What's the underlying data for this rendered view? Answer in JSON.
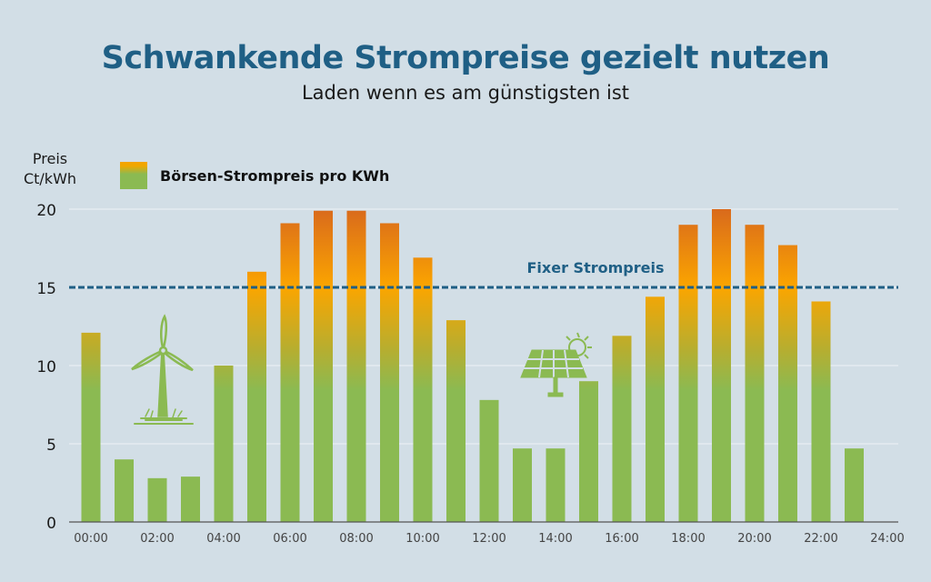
{
  "header": {
    "title": "Schwankende Strompreise gezielt nutzen",
    "subtitle": "Laden wenn es am günstigsten ist"
  },
  "colors": {
    "title": "#1f5f85",
    "bar_low": "#8bba52",
    "bar_mid": "#fba500",
    "bar_high": "#d96a1c",
    "fixed_line": "#1f5f85",
    "icon": "#8bba52"
  },
  "chart_data": {
    "type": "bar",
    "title": "Schwankende Strompreise gezielt nutzen",
    "subtitle": "Laden wenn es am günstigsten ist",
    "xlabel": "",
    "ylabel": "Preis Ct/kWh",
    "ylabel_line1": "Preis",
    "ylabel_line2": "Ct/kWh",
    "ylim": [
      0,
      20
    ],
    "yticks": [
      0,
      5,
      10,
      15,
      20
    ],
    "grid": true,
    "legend": {
      "placement": "top-left",
      "entries": [
        "Börsen-Strompreis pro KWh"
      ]
    },
    "categories": [
      "00:00",
      "01:00",
      "02:00",
      "03:00",
      "04:00",
      "05:00",
      "06:00",
      "07:00",
      "08:00",
      "09:00",
      "10:00",
      "11:00",
      "12:00",
      "13:00",
      "14:00",
      "15:00",
      "16:00",
      "17:00",
      "18:00",
      "19:00",
      "20:00",
      "21:00",
      "22:00",
      "23:00",
      "24:00"
    ],
    "xtick_labels": [
      "00:00",
      "02:00",
      "04:00",
      "06:00",
      "08:00",
      "10:00",
      "12:00",
      "14:00",
      "16:00",
      "18:00",
      "20:00",
      "22:00",
      "24:00"
    ],
    "series": [
      {
        "name": "Börsen-Strompreis pro KWh",
        "values": [
          12.1,
          4.0,
          2.8,
          2.9,
          10.0,
          16.0,
          19.1,
          19.9,
          19.9,
          19.1,
          16.9,
          12.9,
          7.8,
          4.7,
          4.7,
          9.0,
          11.9,
          14.4,
          19.0,
          20.0,
          19.0,
          17.7,
          14.1,
          4.7
        ]
      }
    ],
    "reference_line": {
      "label": "Fixer Strompreis",
      "value": 15
    },
    "annotations": [
      "wind-turbine-icon",
      "solar-panel-icon"
    ]
  }
}
